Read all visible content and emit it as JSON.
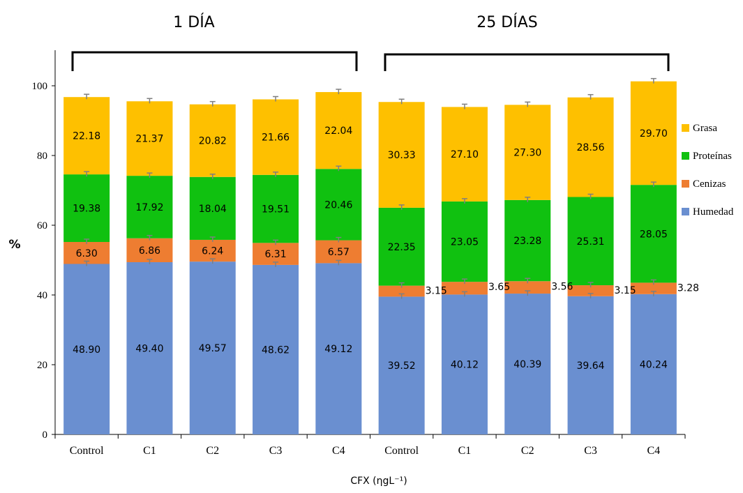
{
  "chart_data": {
    "type": "bar",
    "stacked": true,
    "group_titles": [
      "1 DÍA",
      "25 DÍAS"
    ],
    "categories": [
      "Control",
      "C1",
      "C2",
      "C3",
      "C4",
      "Control",
      "C1",
      "C2",
      "C3",
      "C4"
    ],
    "series": [
      {
        "name": "Humedad",
        "color": "#6a8fd0",
        "values": [
          48.9,
          49.4,
          49.57,
          48.62,
          49.12,
          39.52,
          40.12,
          40.39,
          39.64,
          40.24
        ],
        "labels": [
          "48.90",
          "49.40",
          "49.57",
          "48.62",
          "49.12",
          "39.52",
          "40.12",
          "40.39",
          "39.64",
          "40.24"
        ]
      },
      {
        "name": "Cenizas",
        "color": "#ee7d31",
        "values": [
          6.3,
          6.86,
          6.24,
          6.31,
          6.57,
          3.15,
          3.65,
          3.56,
          3.15,
          3.28
        ],
        "labels": [
          "6.30",
          "6.86",
          "6.24",
          "6.31",
          "6.57",
          "3.15",
          "3.65",
          "3.56",
          "3.15",
          "3.28"
        ]
      },
      {
        "name": "Proteínas",
        "color": "#10c110",
        "values": [
          19.38,
          17.92,
          18.04,
          19.51,
          20.46,
          22.35,
          23.05,
          23.28,
          25.31,
          28.05
        ],
        "labels": [
          "19.38",
          "17.92",
          "18.04",
          "19.51",
          "20.46",
          "22.35",
          "23.05",
          "23.28",
          "25.31",
          "28.05"
        ]
      },
      {
        "name": "Grasa",
        "color": "#fec000",
        "values": [
          22.18,
          21.37,
          20.82,
          21.66,
          22.04,
          30.33,
          27.1,
          27.3,
          28.56,
          29.7
        ],
        "labels": [
          "22.18",
          "21.37",
          "20.82",
          "21.66",
          "22.04",
          "30.33",
          "27.10",
          "27.30",
          "28.56",
          "29.70"
        ]
      }
    ],
    "legend_order": [
      "Grasa",
      "Proteínas",
      "Cenizas",
      "Humedad"
    ],
    "legend_position": "right",
    "ylabel": "%",
    "xlabel": "CFX (ηgL⁻¹)",
    "ylim": [
      0,
      110
    ],
    "yticks": [
      "0",
      "20",
      "40",
      "60",
      "80",
      "100"
    ],
    "ytick_values": [
      0,
      20,
      40,
      60,
      80,
      100
    ],
    "grid": false,
    "error_bars": true
  }
}
